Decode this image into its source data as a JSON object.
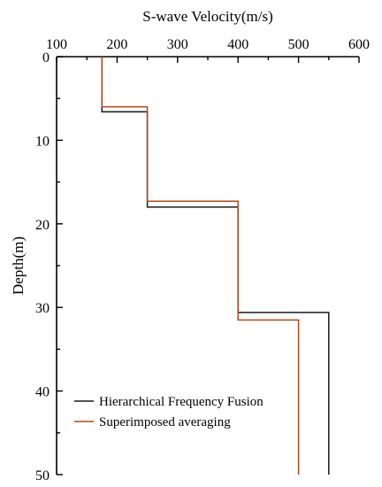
{
  "chart_data": {
    "type": "line",
    "title": "",
    "xlabel": "S-wave Velocity(m/s)",
    "ylabel": "Depth(m)",
    "x_axis_position": "top",
    "y_axis_inverted": true,
    "xlim": [
      100,
      600
    ],
    "ylim": [
      0,
      50
    ],
    "xticks": [
      100,
      200,
      300,
      400,
      500,
      600
    ],
    "yticks": [
      0,
      10,
      20,
      30,
      40,
      50
    ],
    "grid": false,
    "legend_position": "bottom-left",
    "series": [
      {
        "name": "Hierarchical Frequency Fusion",
        "color": "#1a1a1a",
        "points": [
          {
            "x": 175,
            "y": 0
          },
          {
            "x": 175,
            "y": 6.6
          },
          {
            "x": 250,
            "y": 6.6
          },
          {
            "x": 250,
            "y": 18
          },
          {
            "x": 400,
            "y": 18
          },
          {
            "x": 400,
            "y": 30.6
          },
          {
            "x": 550,
            "y": 30.6
          },
          {
            "x": 550,
            "y": 50
          }
        ]
      },
      {
        "name": "Superimposed averaging",
        "color": "#b5461e",
        "points": [
          {
            "x": 175,
            "y": 0
          },
          {
            "x": 175,
            "y": 6
          },
          {
            "x": 250,
            "y": 6
          },
          {
            "x": 250,
            "y": 17.3
          },
          {
            "x": 400,
            "y": 17.3
          },
          {
            "x": 400,
            "y": 31.5
          },
          {
            "x": 500,
            "y": 31.5
          },
          {
            "x": 500,
            "y": 50
          }
        ]
      }
    ]
  }
}
